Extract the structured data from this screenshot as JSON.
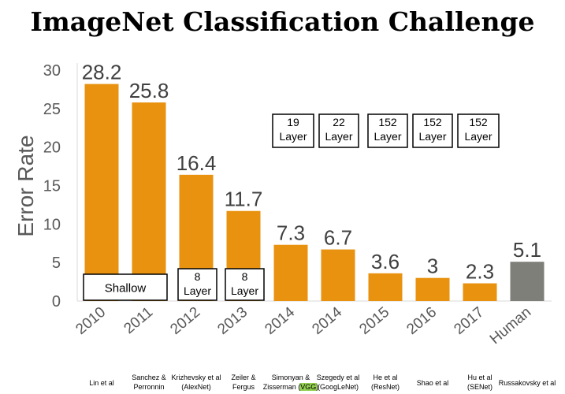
{
  "chart_data": {
    "type": "bar",
    "title": "ImageNet Classification Challenge",
    "ylabel": "Error Rate",
    "xlabel": "",
    "ylim": [
      0,
      30
    ],
    "yticks": [
      0,
      5,
      10,
      15,
      20,
      25,
      30
    ],
    "grid": false,
    "categories": [
      "2010",
      "2011",
      "2012",
      "2013",
      "2014",
      "2014",
      "2015",
      "2016",
      "2017",
      "Human"
    ],
    "values": [
      28.2,
      25.8,
      16.4,
      11.7,
      7.3,
      6.7,
      3.6,
      3,
      2.3,
      5.1
    ],
    "value_labels": [
      "28.2",
      "25.8",
      "16.4",
      "11.7",
      "7.3",
      "6.7",
      "3.6",
      "3",
      "2.3",
      "5.1"
    ],
    "bar_colors": [
      "#E8920F",
      "#E8920F",
      "#E8920F",
      "#E8920F",
      "#E8920F",
      "#E8920F",
      "#E8920F",
      "#E8920F",
      "#E8920F",
      "#7F7F7A"
    ],
    "authors": [
      [
        "Lin et al"
      ],
      [
        "Sanchez &",
        "Perronnin"
      ],
      [
        "Krizhevsky et al",
        "(AlexNet)"
      ],
      [
        "Zeiler &",
        "Fergus"
      ],
      [
        "Simonyan &",
        "Zisserman (VGG)"
      ],
      [
        "Szegedy et al",
        "(GoogLeNet)"
      ],
      [
        "He et al",
        "(ResNet)"
      ],
      [
        "Shao et al"
      ],
      [
        "Hu et al",
        "(SENet)"
      ],
      [
        "Russakovsky et al"
      ]
    ],
    "highlight": {
      "text": "VGG",
      "color": "#92D050"
    },
    "annotations": [
      {
        "id": "shallow",
        "lines": [
          "Shallow"
        ]
      },
      {
        "id": "alexnet",
        "lines": [
          "8",
          "Layer"
        ]
      },
      {
        "id": "zf",
        "lines": [
          "8",
          "Layer"
        ]
      },
      {
        "id": "vgg",
        "lines": [
          "19",
          "Layer"
        ]
      },
      {
        "id": "googlenet",
        "lines": [
          "22",
          "Layer"
        ]
      },
      {
        "id": "resnet",
        "lines": [
          "152",
          "Layer"
        ]
      },
      {
        "id": "shao",
        "lines": [
          "152",
          "Layer"
        ]
      },
      {
        "id": "senet",
        "lines": [
          "152",
          "Layer"
        ]
      }
    ]
  }
}
